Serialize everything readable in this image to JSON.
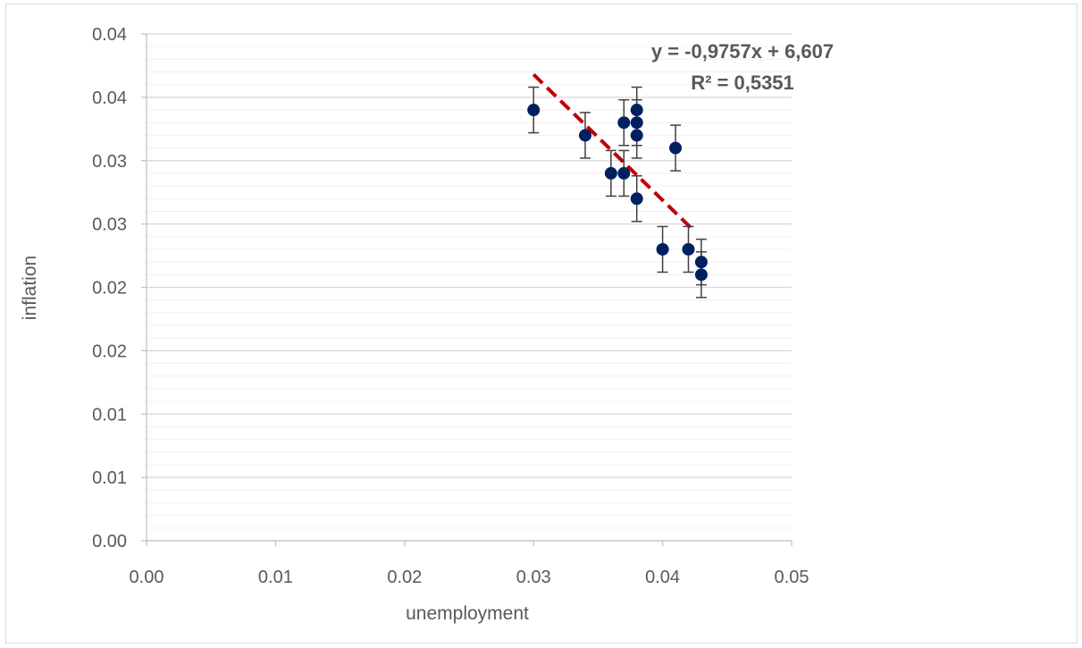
{
  "chart_data": {
    "type": "scatter",
    "xlabel": "unemployment",
    "ylabel": "inflation",
    "xlim": [
      0.0,
      0.05
    ],
    "ylim": [
      0.0,
      0.04
    ],
    "x_ticks": [
      0.0,
      0.01,
      0.02,
      0.03,
      0.04,
      0.05
    ],
    "x_tick_labels": [
      "0.00",
      "0.01",
      "0.02",
      "0.03",
      "0.04",
      "0.05"
    ],
    "y_ticks": [
      0.0,
      0.005,
      0.01,
      0.015,
      0.02,
      0.025,
      0.03,
      0.035,
      0.04
    ],
    "y_tick_labels": [
      "0.00",
      "0.01",
      "0.01",
      "0.02",
      "0.02",
      "0.03",
      "0.03",
      "0.04",
      "0.04"
    ],
    "gridlines": true,
    "minor_gridlines": true,
    "error_bar": 0.0018,
    "points": [
      {
        "x": 0.03,
        "y": 0.034
      },
      {
        "x": 0.034,
        "y": 0.032
      },
      {
        "x": 0.036,
        "y": 0.029
      },
      {
        "x": 0.037,
        "y": 0.033
      },
      {
        "x": 0.037,
        "y": 0.029
      },
      {
        "x": 0.038,
        "y": 0.034
      },
      {
        "x": 0.038,
        "y": 0.033
      },
      {
        "x": 0.038,
        "y": 0.032
      },
      {
        "x": 0.038,
        "y": 0.027
      },
      {
        "x": 0.04,
        "y": 0.023
      },
      {
        "x": 0.041,
        "y": 0.031
      },
      {
        "x": 0.042,
        "y": 0.023
      },
      {
        "x": 0.043,
        "y": 0.022
      },
      {
        "x": 0.043,
        "y": 0.021
      }
    ],
    "trendline": {
      "x": [
        0.03,
        0.0425
      ],
      "y": [
        0.0368,
        0.0244
      ]
    },
    "equation": "y = -0,9757x + 6,607",
    "r_squared": "R² = 0,5351",
    "colors": {
      "points": "#002060",
      "trendline": "#c00000",
      "error_bars": "#404040",
      "grid": "#d9d9d9",
      "minor_grid": "#f0f0f0",
      "text": "#595959"
    }
  }
}
